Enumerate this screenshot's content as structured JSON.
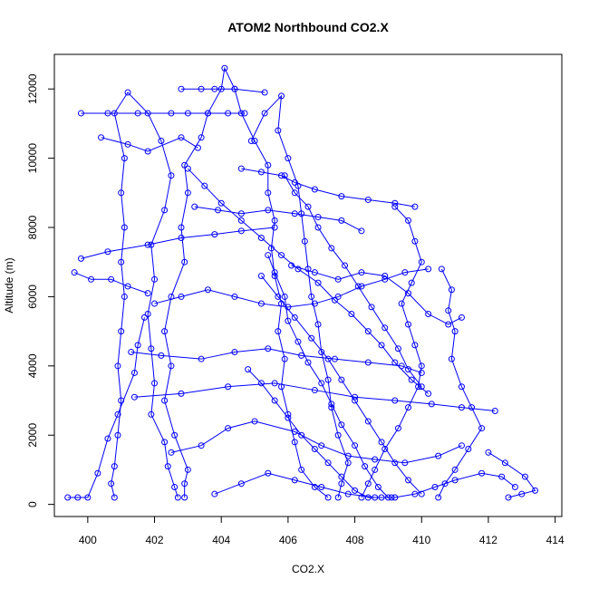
{
  "chart_data": {
    "type": "scatter",
    "title": "ATOM2 Northbound CO2.X",
    "xlabel": "CO2.X",
    "ylabel": "Altitude (m)",
    "xlim": [
      399.0,
      414.2
    ],
    "ylim": [
      -350,
      13000
    ],
    "x_ticks": [
      400,
      402,
      404,
      406,
      408,
      410,
      412,
      414
    ],
    "y_ticks": [
      0,
      2000,
      4000,
      6000,
      8000,
      10000,
      12000
    ],
    "grid": false,
    "legend": "none",
    "line_color": "#0000ff",
    "marker": "open-circle",
    "series": [
      {
        "values": [
          [
            400.8,
            200
          ],
          [
            400.7,
            600
          ],
          [
            400.8,
            1100
          ],
          [
            400.9,
            2000
          ],
          [
            401.0,
            3000
          ],
          [
            400.9,
            4000
          ],
          [
            401.0,
            5000
          ],
          [
            401.1,
            6000
          ],
          [
            401.0,
            7000
          ],
          [
            401.1,
            8000
          ],
          [
            401.0,
            9000
          ],
          [
            401.1,
            10000
          ],
          [
            400.8,
            11300
          ],
          [
            401.2,
            11900
          ],
          [
            401.8,
            11300
          ],
          [
            402.2,
            10500
          ],
          [
            402.5,
            9500
          ],
          [
            402.3,
            8500
          ],
          [
            401.9,
            7500
          ],
          [
            402.0,
            6500
          ],
          [
            401.8,
            5500
          ],
          [
            401.9,
            4500
          ],
          [
            402.0,
            3500
          ],
          [
            401.9,
            2600
          ],
          [
            402.3,
            1800
          ],
          [
            402.4,
            1100
          ],
          [
            402.6,
            500
          ],
          [
            402.7,
            200
          ]
        ]
      },
      {
        "values": [
          [
            402.9,
            200
          ],
          [
            402.9,
            600
          ],
          [
            403.0,
            1000
          ],
          [
            402.6,
            2000
          ],
          [
            402.3,
            3000
          ],
          [
            402.5,
            4000
          ],
          [
            402.3,
            5000
          ],
          [
            402.5,
            6000
          ],
          [
            402.9,
            7000
          ],
          [
            402.8,
            8000
          ],
          [
            403.0,
            9000
          ],
          [
            402.9,
            9800
          ],
          [
            403.4,
            10600
          ],
          [
            403.6,
            11300
          ],
          [
            404.0,
            12000
          ],
          [
            404.1,
            12600
          ],
          [
            404.4,
            12000
          ],
          [
            404.6,
            11300
          ],
          [
            405.0,
            10500
          ],
          [
            405.4,
            9800
          ],
          [
            405.4,
            9000
          ],
          [
            405.6,
            8200
          ],
          [
            405.5,
            7400
          ],
          [
            405.6,
            6600
          ],
          [
            405.8,
            5800
          ],
          [
            405.7,
            5000
          ],
          [
            405.9,
            4200
          ],
          [
            405.8,
            3400
          ],
          [
            406.0,
            2600
          ],
          [
            406.2,
            1800
          ],
          [
            406.4,
            1000
          ],
          [
            406.8,
            500
          ],
          [
            407.2,
            200
          ]
        ]
      },
      {
        "values": [
          [
            407.5,
            200
          ],
          [
            407.6,
            600
          ],
          [
            407.8,
            1200
          ],
          [
            407.5,
            2000
          ],
          [
            407.3,
            2800
          ],
          [
            407.2,
            3600
          ],
          [
            407.0,
            4400
          ],
          [
            406.9,
            5200
          ],
          [
            406.7,
            6000
          ],
          [
            406.6,
            6800
          ],
          [
            406.5,
            7600
          ],
          [
            406.4,
            8400
          ],
          [
            406.3,
            9200
          ],
          [
            406.0,
            10000
          ],
          [
            405.7,
            10800
          ],
          [
            405.8,
            11800
          ],
          [
            405.3,
            11300
          ],
          [
            404.9,
            10500
          ]
        ]
      },
      {
        "values": [
          [
            408.2,
            200
          ],
          [
            408.4,
            600
          ],
          [
            408.6,
            1000
          ],
          [
            408.9,
            1600
          ],
          [
            409.3,
            2200
          ],
          [
            409.6,
            2800
          ],
          [
            409.9,
            3400
          ],
          [
            410.0,
            4000
          ],
          [
            409.8,
            4600
          ],
          [
            409.6,
            5200
          ],
          [
            409.4,
            5800
          ],
          [
            409.7,
            6400
          ],
          [
            410.0,
            7000
          ],
          [
            409.8,
            7600
          ],
          [
            409.6,
            8200
          ],
          [
            409.2,
            8600
          ]
        ]
      },
      {
        "values": [
          [
            410.5,
            200
          ],
          [
            410.7,
            600
          ],
          [
            411.0,
            1000
          ],
          [
            411.4,
            1600
          ],
          [
            411.8,
            2200
          ],
          [
            411.5,
            2800
          ],
          [
            411.2,
            3400
          ],
          [
            410.9,
            4200
          ],
          [
            411.0,
            5000
          ],
          [
            410.8,
            5600
          ],
          [
            410.9,
            6200
          ],
          [
            410.6,
            6800
          ]
        ]
      },
      {
        "values": [
          [
            412.6,
            200
          ],
          [
            413.0,
            300
          ],
          [
            413.4,
            400
          ],
          [
            413.1,
            800
          ],
          [
            412.5,
            1200
          ],
          [
            412.0,
            1500
          ]
        ]
      },
      {
        "values": [
          [
            399.4,
            200
          ],
          [
            399.7,
            200
          ],
          [
            400.0,
            200
          ],
          [
            400.3,
            900
          ],
          [
            400.6,
            1900
          ],
          [
            400.9,
            2600
          ],
          [
            401.4,
            3800
          ],
          [
            401.5,
            4600
          ],
          [
            401.7,
            5400
          ]
        ]
      },
      {
        "values": [
          [
            399.6,
            6700
          ],
          [
            400.1,
            6500
          ],
          [
            400.7,
            6500
          ],
          [
            401.2,
            6300
          ],
          [
            401.8,
            6100
          ]
        ]
      },
      {
        "values": [
          [
            399.8,
            7100
          ],
          [
            400.6,
            7300
          ],
          [
            401.8,
            7500
          ],
          [
            402.8,
            7700
          ],
          [
            403.8,
            7800
          ],
          [
            404.6,
            7900
          ],
          [
            405.6,
            8000
          ]
        ]
      },
      {
        "values": [
          [
            400.4,
            10600
          ],
          [
            401.2,
            10400
          ],
          [
            401.8,
            10200
          ],
          [
            402.8,
            10600
          ],
          [
            403.3,
            10300
          ]
        ]
      },
      {
        "values": [
          [
            399.8,
            11300
          ],
          [
            400.6,
            11300
          ],
          [
            401.5,
            11300
          ],
          [
            402.5,
            11300
          ],
          [
            403.0,
            11300
          ],
          [
            403.6,
            11300
          ],
          [
            404.2,
            11300
          ],
          [
            404.7,
            11300
          ]
        ]
      },
      {
        "values": [
          [
            402.8,
            12000
          ],
          [
            403.4,
            12000
          ],
          [
            403.8,
            12000
          ],
          [
            404.4,
            12000
          ],
          [
            405.3,
            11900
          ]
        ]
      },
      {
        "values": [
          [
            404.6,
            9700
          ],
          [
            405.2,
            9600
          ],
          [
            405.8,
            9500
          ],
          [
            406.2,
            9300
          ],
          [
            406.8,
            9100
          ],
          [
            407.6,
            8900
          ],
          [
            408.4,
            8800
          ],
          [
            409.2,
            8700
          ],
          [
            409.8,
            8600
          ]
        ]
      },
      {
        "values": [
          [
            403.2,
            8600
          ],
          [
            403.9,
            8500
          ],
          [
            404.6,
            8400
          ],
          [
            405.4,
            8500
          ],
          [
            406.2,
            8400
          ],
          [
            406.9,
            8300
          ],
          [
            407.6,
            8200
          ],
          [
            408.2,
            7900
          ]
        ]
      },
      {
        "values": [
          [
            401.3,
            4400
          ],
          [
            402.2,
            4300
          ],
          [
            403.4,
            4200
          ],
          [
            404.4,
            4400
          ],
          [
            405.4,
            4500
          ],
          [
            406.4,
            4300
          ],
          [
            407.4,
            4200
          ],
          [
            408.4,
            4100
          ],
          [
            409.4,
            4000
          ],
          [
            410.0,
            3800
          ]
        ]
      },
      {
        "values": [
          [
            401.4,
            3100
          ],
          [
            402.8,
            3200
          ],
          [
            404.2,
            3400
          ],
          [
            405.6,
            3500
          ],
          [
            406.8,
            3300
          ],
          [
            408.0,
            3100
          ],
          [
            409.2,
            3000
          ],
          [
            410.3,
            2900
          ],
          [
            411.2,
            2800
          ],
          [
            412.2,
            2700
          ]
        ]
      },
      {
        "values": [
          [
            402.5,
            1500
          ],
          [
            403.4,
            1700
          ],
          [
            404.2,
            2200
          ],
          [
            405.0,
            2400
          ],
          [
            406.2,
            2100
          ],
          [
            407.0,
            1700
          ],
          [
            407.8,
            1400
          ],
          [
            408.6,
            1300
          ],
          [
            409.5,
            1200
          ],
          [
            410.5,
            1400
          ],
          [
            411.2,
            1700
          ]
        ]
      },
      {
        "values": [
          [
            403.8,
            300
          ],
          [
            404.6,
            600
          ],
          [
            405.4,
            900
          ],
          [
            406.2,
            700
          ],
          [
            407.0,
            500
          ],
          [
            407.8,
            300
          ],
          [
            408.6,
            200
          ],
          [
            409.2,
            200
          ],
          [
            409.8,
            300
          ],
          [
            410.4,
            500
          ],
          [
            411.0,
            700
          ],
          [
            411.8,
            900
          ],
          [
            412.4,
            800
          ],
          [
            412.8,
            500
          ]
        ]
      },
      {
        "values": [
          [
            402.0,
            5800
          ],
          [
            402.8,
            6000
          ],
          [
            403.6,
            6200
          ],
          [
            404.4,
            6000
          ],
          [
            405.2,
            5800
          ],
          [
            406.0,
            5700
          ],
          [
            406.8,
            5800
          ],
          [
            407.5,
            6000
          ],
          [
            408.2,
            6300
          ],
          [
            408.9,
            6500
          ],
          [
            409.5,
            6700
          ],
          [
            410.2,
            6800
          ]
        ]
      },
      {
        "values": [
          [
            406.1,
            6900
          ],
          [
            406.8,
            6700
          ],
          [
            407.5,
            6500
          ],
          [
            408.2,
            6700
          ],
          [
            408.9,
            6600
          ],
          [
            409.6,
            6100
          ],
          [
            410.2,
            5500
          ],
          [
            410.8,
            5200
          ],
          [
            411.2,
            5400
          ]
        ]
      },
      {
        "values": [
          [
            404.8,
            3900
          ],
          [
            405.2,
            3500
          ],
          [
            405.6,
            3000
          ],
          [
            406.0,
            2500
          ],
          [
            406.4,
            2000
          ],
          [
            406.8,
            1600
          ],
          [
            407.2,
            1200
          ],
          [
            407.6,
            800
          ],
          [
            408.0,
            400
          ],
          [
            408.4,
            200
          ],
          [
            408.8,
            200
          ],
          [
            409.1,
            200
          ]
        ]
      },
      {
        "values": [
          [
            405.2,
            6600
          ],
          [
            405.7,
            6000
          ],
          [
            406.2,
            5400
          ],
          [
            406.7,
            4800
          ],
          [
            407.2,
            4200
          ],
          [
            407.6,
            3600
          ],
          [
            408.0,
            3000
          ],
          [
            408.4,
            2400
          ],
          [
            408.8,
            1800
          ],
          [
            409.2,
            1200
          ],
          [
            409.6,
            700
          ],
          [
            410.0,
            300
          ]
        ]
      },
      {
        "values": [
          [
            405.9,
            9500
          ],
          [
            406.2,
            9000
          ],
          [
            406.6,
            8600
          ],
          [
            406.9,
            8000
          ],
          [
            407.3,
            7400
          ],
          [
            407.7,
            6900
          ],
          [
            408.1,
            6300
          ],
          [
            408.5,
            5700
          ],
          [
            408.9,
            5100
          ],
          [
            409.3,
            4500
          ],
          [
            409.6,
            3900
          ],
          [
            410.0,
            3400
          ]
        ]
      },
      {
        "values": [
          [
            405.4,
            7200
          ],
          [
            405.6,
            6700
          ],
          [
            405.9,
            6000
          ],
          [
            406.0,
            5300
          ],
          [
            406.3,
            4700
          ],
          [
            406.6,
            4100
          ],
          [
            407.0,
            3500
          ],
          [
            407.3,
            2900
          ],
          [
            407.6,
            2300
          ],
          [
            408.0,
            1700
          ],
          [
            408.3,
            1100
          ],
          [
            408.7,
            500
          ],
          [
            409.0,
            200
          ]
        ]
      },
      {
        "values": [
          [
            403.0,
            9700
          ],
          [
            403.5,
            9200
          ],
          [
            404.0,
            8700
          ],
          [
            404.6,
            8200
          ],
          [
            405.2,
            7700
          ],
          [
            405.8,
            7200
          ],
          [
            406.3,
            6800
          ],
          [
            406.9,
            6400
          ],
          [
            407.4,
            5900
          ],
          [
            407.9,
            5500
          ],
          [
            408.4,
            5000
          ],
          [
            408.8,
            4600
          ],
          [
            409.2,
            4100
          ],
          [
            409.7,
            3600
          ],
          [
            410.2,
            3200
          ]
        ]
      }
    ]
  }
}
